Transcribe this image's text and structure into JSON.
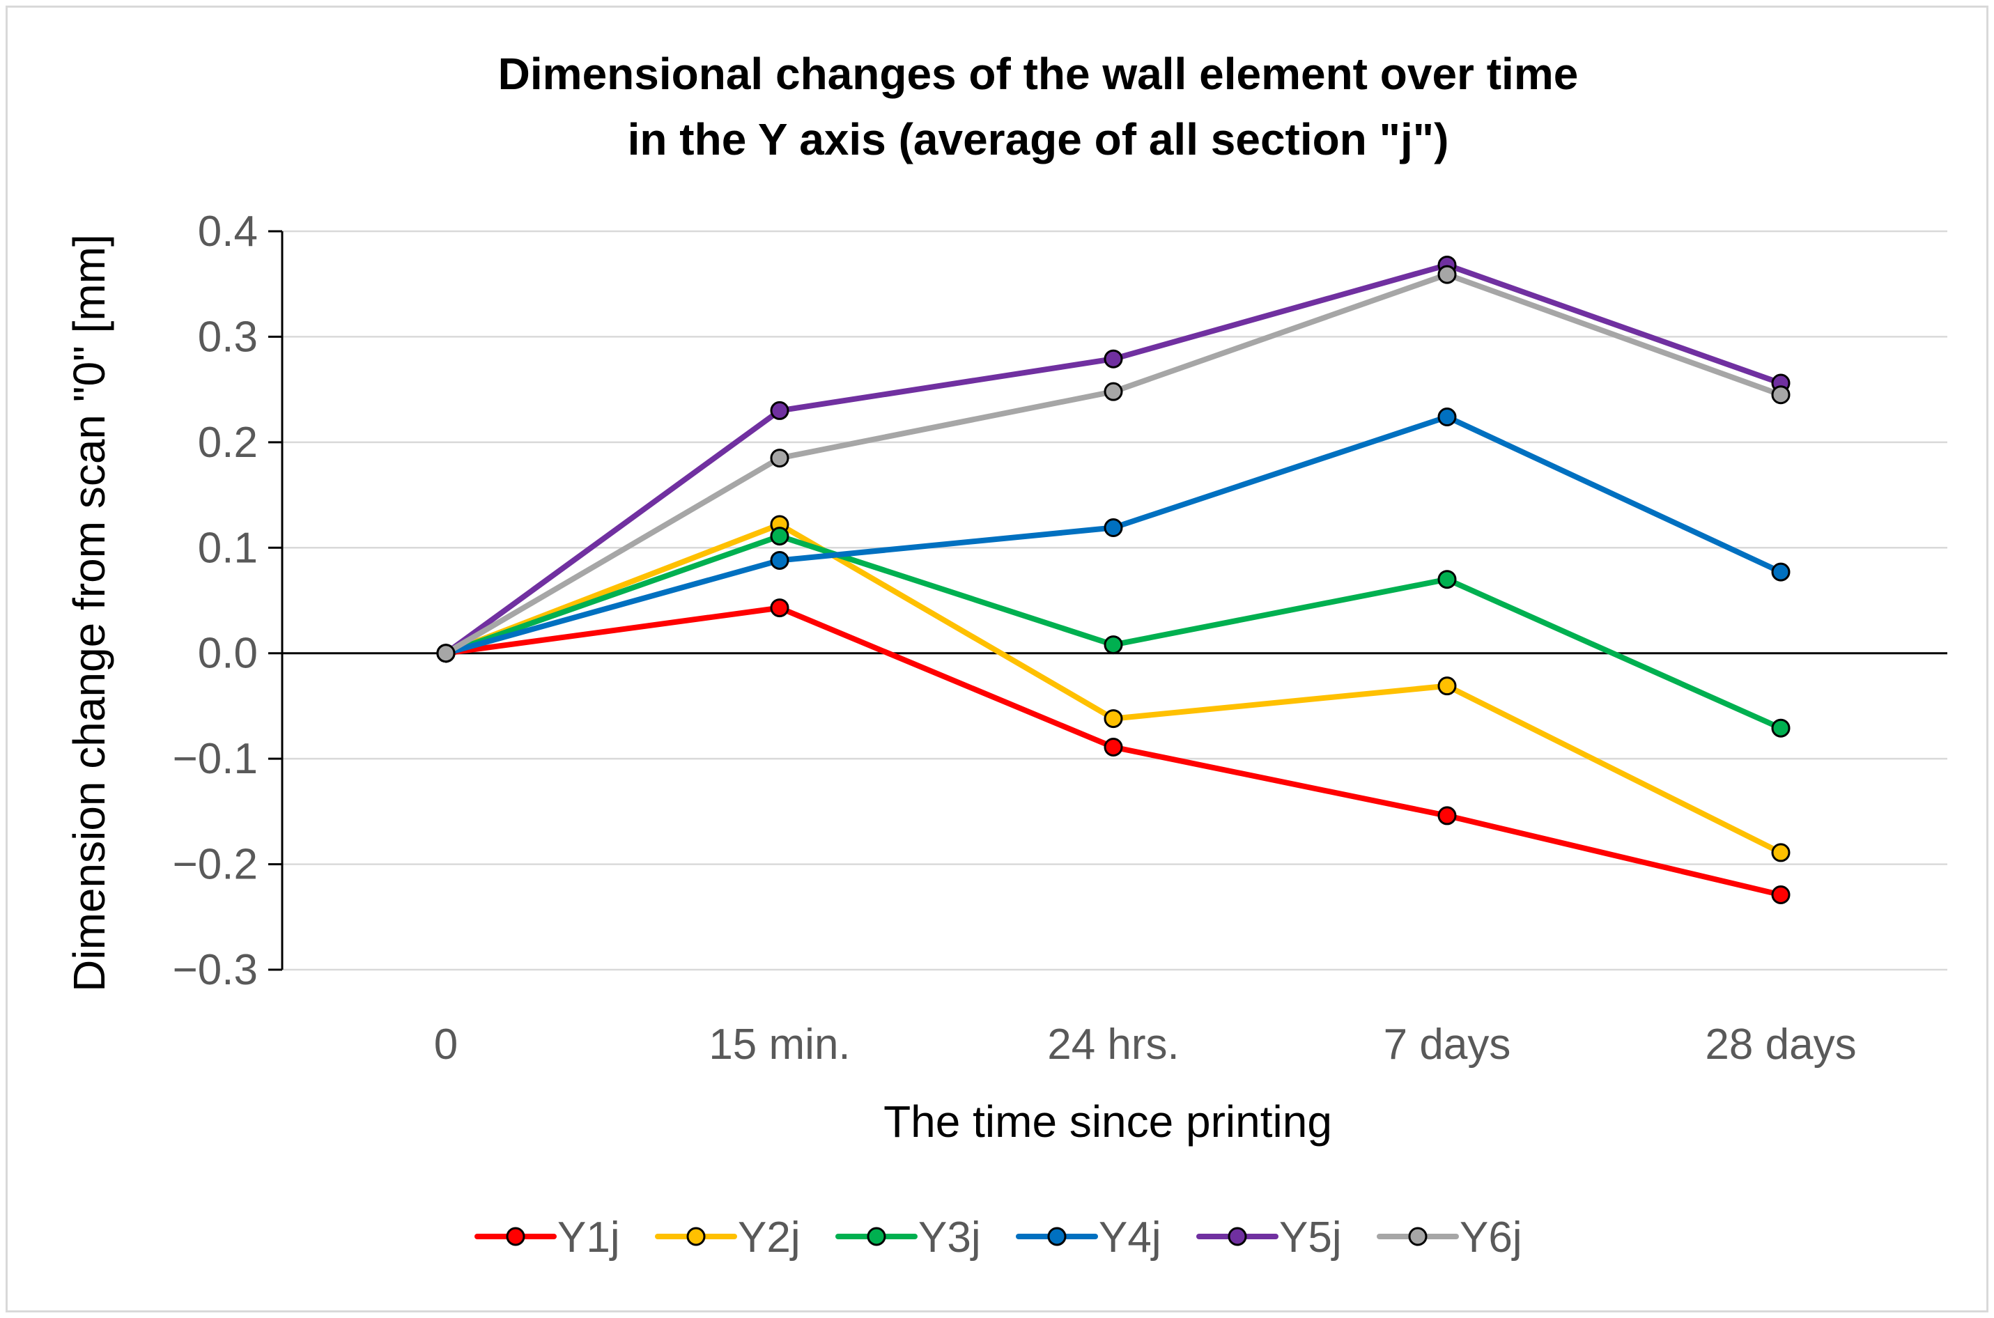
{
  "chart_data": {
    "type": "line",
    "title": "Dimensional changes of the wall element over time",
    "subtitle": "in the Y axis (average of all section \"j\")",
    "xlabel": "The time since printing",
    "ylabel": "Dimension change from scan \"0\" [mm]",
    "categories": [
      "0",
      "15 min.",
      "24 hrs.",
      "7 days",
      "28 days"
    ],
    "ylim": [
      -0.3,
      0.4
    ],
    "yticks": [
      -0.3,
      -0.2,
      -0.1,
      0.0,
      0.1,
      0.2,
      0.3,
      0.4
    ],
    "ytick_labels": [
      "−0.3",
      "−0.2",
      "−0.1",
      "0.0",
      "0.1",
      "0.2",
      "0.3",
      "0.4"
    ],
    "grid": true,
    "legend_position": "bottom",
    "series": [
      {
        "name": "Y1j",
        "color": "#ff0000",
        "values": [
          0.0,
          0.043,
          -0.089,
          -0.154,
          -0.229
        ]
      },
      {
        "name": "Y2j",
        "color": "#ffc000",
        "values": [
          0.0,
          0.122,
          -0.062,
          -0.031,
          -0.189
        ]
      },
      {
        "name": "Y3j",
        "color": "#00b050",
        "values": [
          0.0,
          0.111,
          0.008,
          0.07,
          -0.071
        ]
      },
      {
        "name": "Y4j",
        "color": "#0070c0",
        "values": [
          0.0,
          0.088,
          0.119,
          0.224,
          0.077
        ]
      },
      {
        "name": "Y5j",
        "color": "#7030a0",
        "values": [
          0.0,
          0.23,
          0.279,
          0.368,
          0.256
        ]
      },
      {
        "name": "Y6j",
        "color": "#a6a6a6",
        "values": [
          0.0,
          0.185,
          0.248,
          0.359,
          0.245
        ]
      }
    ]
  }
}
